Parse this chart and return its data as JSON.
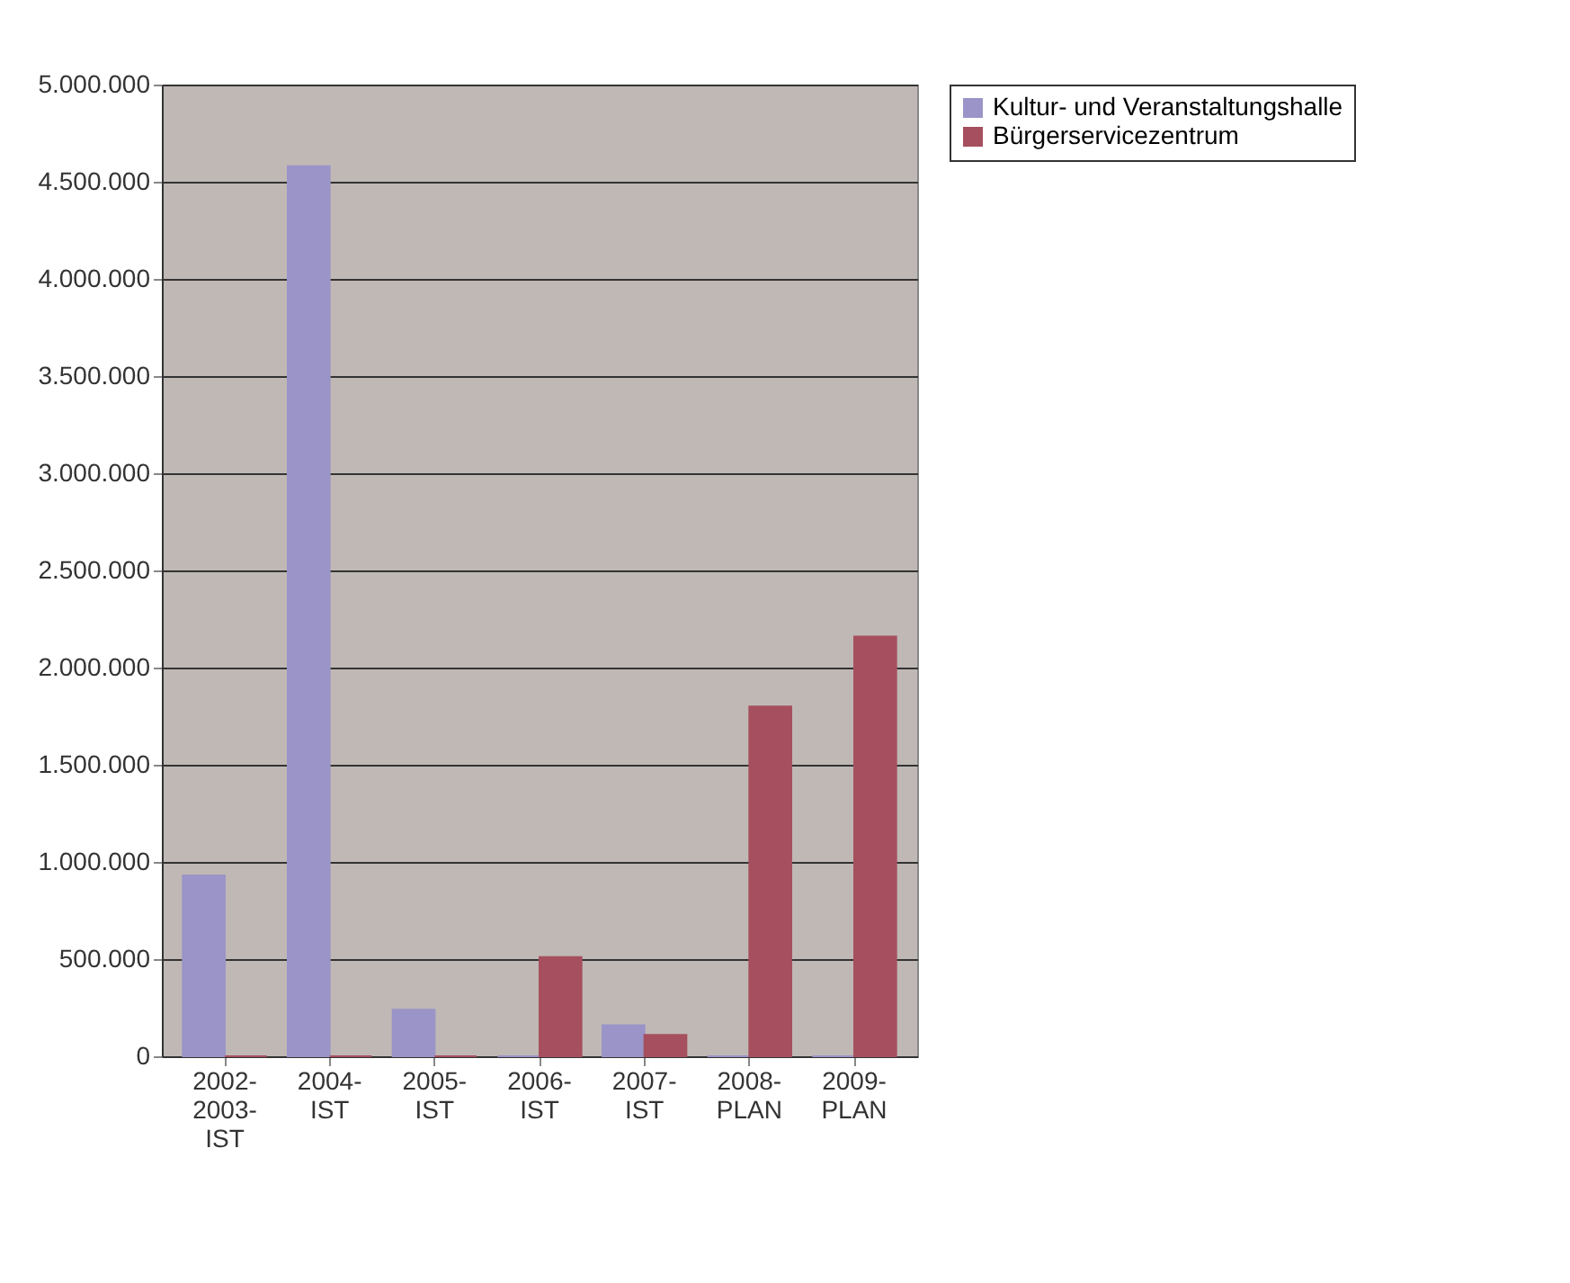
{
  "chart_data": {
    "type": "bar",
    "categories": [
      "2002-2003-IST",
      "2004-IST",
      "2005-IST",
      "2006-IST",
      "2007-IST",
      "2008-PLAN",
      "2009-PLAN"
    ],
    "series": [
      {
        "name": "Kultur- und Veranstaltungshalle",
        "color": "#9a94c8",
        "values": [
          930000,
          4580000,
          240000,
          0,
          160000,
          0,
          0
        ]
      },
      {
        "name": "Bürgerservicezentrum",
        "color": "#a6505f",
        "values": [
          0,
          0,
          0,
          510000,
          110000,
          1800000,
          2160000
        ]
      }
    ],
    "ylim": [
      0,
      5000000
    ],
    "yticks": [
      0,
      {
        "value": 500000,
        "label": "500.000"
      },
      {
        "value": 1000000,
        "label": "1.000.000"
      },
      {
        "value": 1500000,
        "label": "1.500.000"
      },
      {
        "value": 2000000,
        "label": "2.000.000"
      },
      {
        "value": 2500000,
        "label": "2.500.000"
      },
      {
        "value": 3000000,
        "label": "3.000.000"
      },
      {
        "value": 3500000,
        "label": "3.500.000"
      },
      {
        "value": 4000000,
        "label": "4.000.000"
      },
      {
        "value": 4500000,
        "label": "4.500.000"
      },
      {
        "value": 5000000,
        "label": "5.000.000"
      }
    ],
    "grid": "y",
    "legend": "right"
  }
}
